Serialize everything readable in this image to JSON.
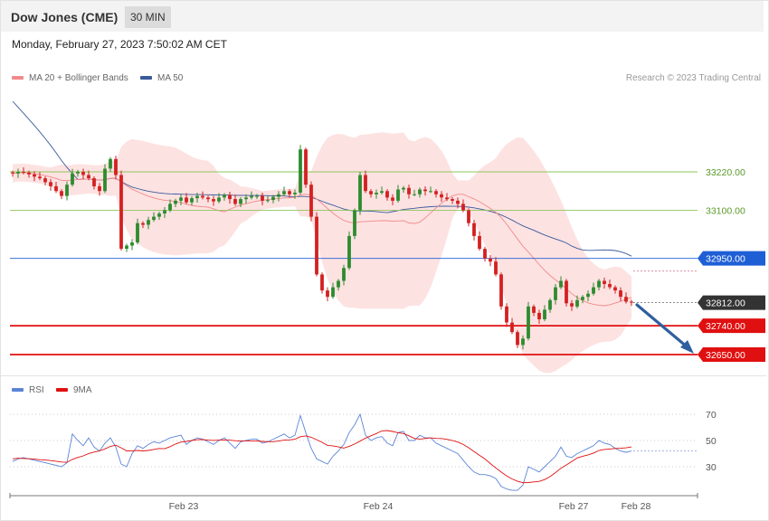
{
  "header": {
    "title": "Dow Jones (CME)",
    "timeframe": "30 MIN"
  },
  "timestamp": "Monday, February 27, 2023 7:50:02 AM CET",
  "credit": "Research © 2023 Trading Central",
  "legend_main": [
    {
      "label": "MA 20 + Bollinger Bands",
      "color": "#f08a8a"
    },
    {
      "label": "MA 50",
      "color": "#3a5a9a"
    }
  ],
  "legend_rsi": [
    {
      "label": "RSI",
      "color": "#5b84d6"
    },
    {
      "label": "9MA",
      "color": "#e01010"
    }
  ],
  "colors": {
    "bull": "#2e8b2e",
    "bear": "#d42020",
    "band_fill": "#fde2e2",
    "ma20": "#f08a8a",
    "ma50": "#3a5a9a",
    "resistance": "#8fc45a",
    "pivot": "#1f5fd6",
    "support": "#e01010",
    "current": "#333333",
    "arrow": "#2f5f9e"
  },
  "chart_data": [
    {
      "type": "candlestick",
      "x_ticks": [
        "Feb 23",
        "Feb 24",
        "Feb 27",
        "Feb 28"
      ],
      "ylim": [
        32600,
        33330
      ],
      "levels": [
        {
          "value": 33220,
          "label": "33220.00",
          "kind": "resistance"
        },
        {
          "value": 33100,
          "label": "33100.00",
          "kind": "resistance"
        },
        {
          "value": 32950,
          "label": "32950.00",
          "kind": "pivot"
        },
        {
          "value": 32812,
          "label": "32812.00",
          "kind": "current"
        },
        {
          "value": 32740,
          "label": "32740.00",
          "kind": "support"
        },
        {
          "value": 32650,
          "label": "32650.00",
          "kind": "support"
        }
      ],
      "closes": [
        33215,
        33220,
        33218,
        33212,
        33205,
        33200,
        33188,
        33175,
        33160,
        33145,
        33180,
        33215,
        33220,
        33210,
        33200,
        33175,
        33160,
        33230,
        33260,
        33210,
        32980,
        32990,
        33000,
        33060,
        33055,
        33070,
        33080,
        33090,
        33100,
        33120,
        33130,
        33140,
        33125,
        33138,
        33145,
        33140,
        33135,
        33128,
        33140,
        33148,
        33135,
        33120,
        33135,
        33140,
        33145,
        33145,
        33130,
        33132,
        33142,
        33150,
        33160,
        33150,
        33155,
        33290,
        33180,
        33080,
        32900,
        32850,
        32830,
        32860,
        32880,
        32920,
        33020,
        33100,
        33210,
        33160,
        33150,
        33155,
        33160,
        33140,
        33130,
        33165,
        33170,
        33150,
        33150,
        33165,
        33160,
        33160,
        33150,
        33140,
        33135,
        33130,
        33120,
        33100,
        33060,
        33020,
        32980,
        32950,
        32940,
        32900,
        32800,
        32750,
        32720,
        32680,
        32700,
        32800,
        32780,
        32760,
        32790,
        32820,
        32860,
        32880,
        32810,
        32800,
        32820,
        32830,
        32840,
        32860,
        32880,
        32870,
        32860,
        32850,
        32830,
        32815,
        32812
      ],
      "ma50_start": 33440,
      "ma50_end": 32905
    },
    {
      "type": "line",
      "title": "RSI",
      "ylim": [
        10,
        80
      ],
      "y_ticks": [
        70,
        50,
        30
      ],
      "series": [
        {
          "name": "RSI",
          "values": [
            34,
            36,
            37,
            36,
            35,
            34,
            33,
            32,
            31,
            30,
            33,
            55,
            50,
            46,
            52,
            45,
            42,
            48,
            52,
            45,
            32,
            30,
            40,
            46,
            44,
            47,
            49,
            48,
            50,
            52,
            53,
            54,
            47,
            50,
            52,
            51,
            49,
            47,
            50,
            52,
            48,
            44,
            49,
            50,
            51,
            51,
            48,
            49,
            51,
            53,
            55,
            52,
            54,
            69,
            56,
            44,
            36,
            34,
            32,
            38,
            42,
            47,
            56,
            62,
            70,
            54,
            50,
            52,
            53,
            48,
            46,
            56,
            57,
            50,
            50,
            54,
            52,
            52,
            48,
            46,
            44,
            42,
            40,
            35,
            30,
            26,
            24,
            24,
            23,
            21,
            15,
            13,
            12,
            12,
            16,
            30,
            28,
            26,
            30,
            34,
            38,
            45,
            38,
            37,
            40,
            42,
            44,
            46,
            50,
            48,
            47,
            44,
            42,
            41,
            42
          ]
        },
        {
          "name": "9MA",
          "values": [
            36,
            36.5,
            36.3,
            36.1,
            35.8,
            35.4,
            35.1,
            34.7,
            34.2,
            33.6,
            33.4,
            35.6,
            37.1,
            38.3,
            40.1,
            41.2,
            42.1,
            43.6,
            45.5,
            46.4,
            44.4,
            42.1,
            42,
            42.4,
            42.1,
            42.4,
            43.2,
            43.9,
            43.7,
            45.3,
            47.3,
            48.8,
            49.3,
            50,
            50.6,
            50.7,
            50.3,
            50.1,
            50.3,
            50.5,
            50.3,
            49.8,
            49.6,
            49.7,
            49.7,
            49.6,
            49.3,
            49.1,
            49.1,
            49.6,
            50.3,
            50.5,
            51,
            52.9,
            53.5,
            52.5,
            50.6,
            48.6,
            46.3,
            45.9,
            45.1,
            44.2,
            45.6,
            47.3,
            49.5,
            51.8,
            53.6,
            55.3,
            57.3,
            57.6,
            56.9,
            55.9,
            55.3,
            53.6,
            51.6,
            51.1,
            51.5,
            52,
            51.6,
            51.5,
            50.9,
            50,
            48.8,
            47,
            44.5,
            41.6,
            38.7,
            35.9,
            32.4,
            29.1,
            25.9,
            23,
            20.7,
            18.9,
            17.8,
            17.9,
            18.4,
            18.8,
            20.2,
            22.5,
            25.5,
            28.8,
            31.4,
            33.9,
            36.7,
            38,
            39,
            40.4,
            42.4,
            43.2,
            43.5,
            43.9,
            44.1,
            44.4,
            45.1
          ]
        }
      ]
    }
  ],
  "rsi_ticks_labels": [
    "70",
    "50",
    "30"
  ]
}
